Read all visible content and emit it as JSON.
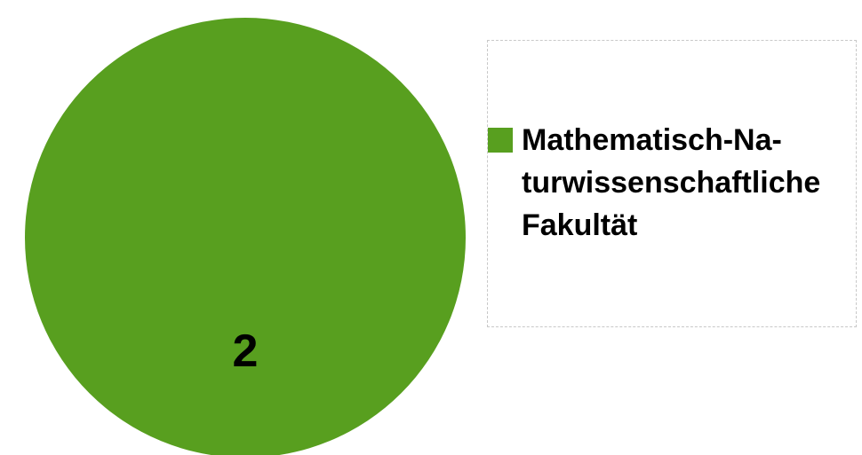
{
  "chart_data": {
    "type": "pie",
    "categories": [
      "Mathematisch-Na­turwissenschaft­liche Fakultät"
    ],
    "values": [
      2
    ],
    "colors": [
      "#589f1f"
    ]
  }
}
